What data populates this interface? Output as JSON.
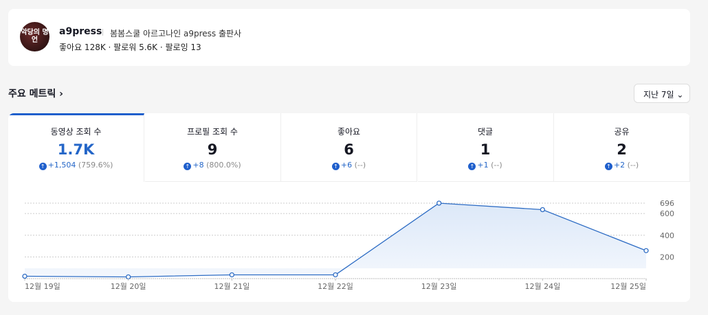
{
  "profile": {
    "avatar_text": "악당의 명언",
    "name": "a9press",
    "bio": "봄봄스쿨 아르고나인 a9press 출판사",
    "stats": "좋아요 128K · 팔로워 5.6K · 팔로잉 13"
  },
  "section": {
    "title": "주요 메트릭 ›",
    "range": "지난 7일 ⌄"
  },
  "metrics": [
    {
      "label": "동영상 조회 수",
      "value": "1.7K",
      "delta": "+1,504",
      "pct": "(759.6%)"
    },
    {
      "label": "프로필 조회 수",
      "value": "9",
      "delta": "+8",
      "pct": "(800.0%)"
    },
    {
      "label": "좋아요",
      "value": "6",
      "delta": "+6",
      "pct": "(--)"
    },
    {
      "label": "댓글",
      "value": "1",
      "delta": "+1",
      "pct": "(--)"
    },
    {
      "label": "공유",
      "value": "2",
      "delta": "+2",
      "pct": "(--)"
    }
  ],
  "colors": {
    "accent": "#2466c8"
  },
  "chart_data": {
    "type": "area",
    "x": [
      "12월 19일",
      "12월 20일",
      "12월 21일",
      "12월 22일",
      "12월 23일",
      "12월 24일",
      "12월 25일"
    ],
    "values": [
      22,
      16,
      35,
      35,
      696,
      636,
      258
    ],
    "yticks": [
      200,
      400,
      600,
      696
    ],
    "ylim": [
      0,
      696
    ],
    "grid": true
  }
}
